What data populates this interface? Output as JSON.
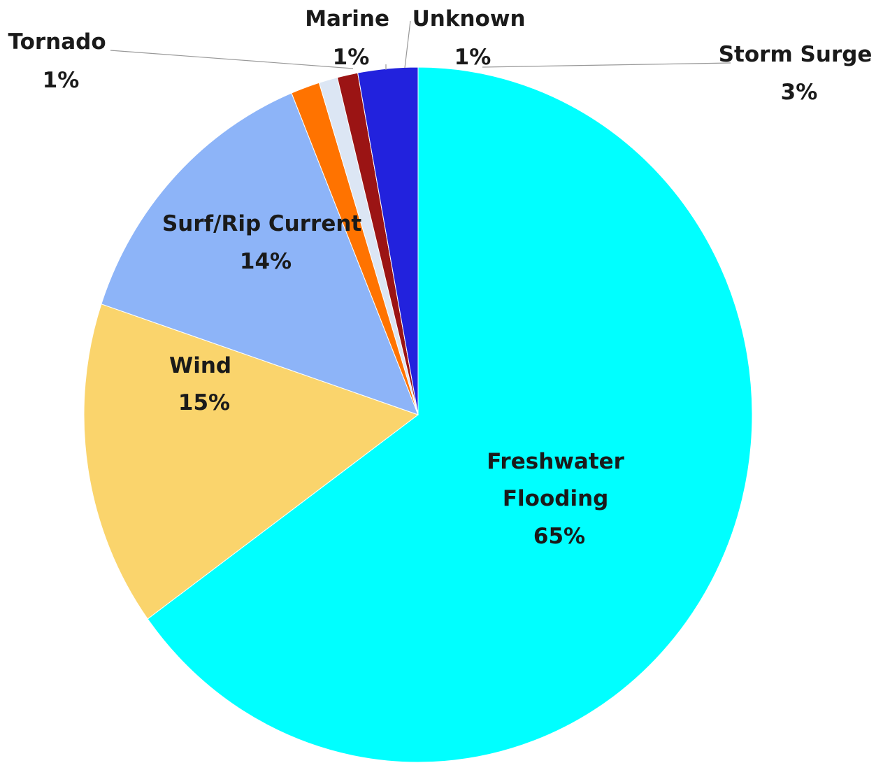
{
  "chart_data": {
    "type": "pie",
    "title": "",
    "start": "top",
    "direction": "clockwise",
    "slices": [
      {
        "name": "Freshwater Flooding",
        "name_lines": [
          "Freshwater",
          "Flooding"
        ],
        "label": "65%",
        "value": 65.2,
        "color": "#00FFFF"
      },
      {
        "name": "Wind",
        "name_lines": [
          "Wind"
        ],
        "label": "15%",
        "value": 15.2,
        "color": "#FAD46C"
      },
      {
        "name": "Surf/Rip Current",
        "name_lines": [
          "Surf/Rip Current"
        ],
        "label": "14%",
        "value": 13.7,
        "color": "#8DB4F8"
      },
      {
        "name": "Tornado",
        "name_lines": [
          "Tornado"
        ],
        "label": "1%",
        "value": 1.4,
        "color": "#FF7300"
      },
      {
        "name": "Marine",
        "name_lines": [
          "Marine"
        ],
        "label": "1%",
        "value": 0.9,
        "color": "#DCE6F4"
      },
      {
        "name": "Unknown",
        "name_lines": [
          "Unknown"
        ],
        "label": "1%",
        "value": 1.0,
        "color": "#9B1414"
      },
      {
        "name": "Storm Surge",
        "name_lines": [
          "Storm Surge"
        ],
        "label": "3%",
        "value": 2.9,
        "color": "#2222DD"
      }
    ],
    "legend": "none",
    "data_labels": "category name and percentage"
  }
}
